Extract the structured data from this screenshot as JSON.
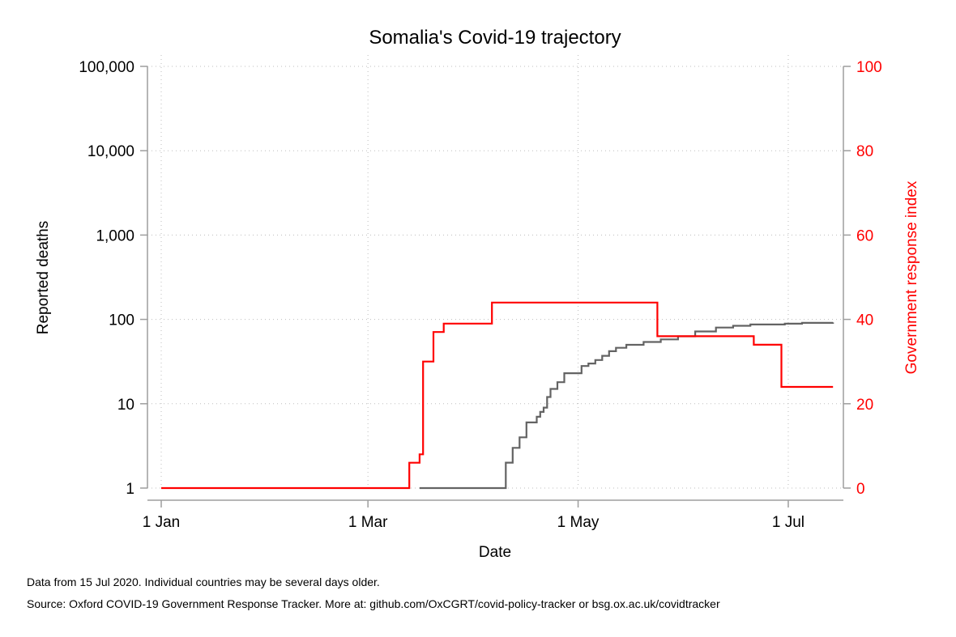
{
  "chart_data": {
    "type": "line",
    "title": "Somalia's Covid-19 trajectory",
    "xlabel": "Date",
    "ylabel": "Reported deaths",
    "y2label": "Government response index",
    "x_ticks": [
      {
        "label": "1 Jan",
        "day": 0
      },
      {
        "label": "1 Mar",
        "day": 60
      },
      {
        "label": "1 May",
        "day": 121
      },
      {
        "label": "1 Jul",
        "day": 182
      }
    ],
    "x_range_days": [
      -4,
      198
    ],
    "y_scale": "log",
    "ylim": [
      1,
      100000
    ],
    "y_ticks": [
      "1",
      "10",
      "100",
      "1,000",
      "10,000",
      "100,000"
    ],
    "y2lim": [
      0,
      100
    ],
    "y2_ticks": [
      "0",
      "20",
      "40",
      "60",
      "80",
      "100"
    ],
    "grid": true,
    "colors": {
      "deaths": "#636363",
      "response": "#ff0000",
      "axis": "#9e9e9e",
      "grid": "#bdbdbd"
    },
    "series": [
      {
        "name": "Reported deaths",
        "axis": "left",
        "x": [
          "2020-03-16",
          "2020-04-08",
          "2020-04-10",
          "2020-04-12",
          "2020-04-14",
          "2020-04-16",
          "2020-04-18",
          "2020-04-19",
          "2020-04-20",
          "2020-04-21",
          "2020-04-22",
          "2020-04-23",
          "2020-04-25",
          "2020-04-27",
          "2020-05-02",
          "2020-05-04",
          "2020-05-06",
          "2020-05-08",
          "2020-05-10",
          "2020-05-12",
          "2020-05-15",
          "2020-05-20",
          "2020-05-25",
          "2020-05-30",
          "2020-06-04",
          "2020-06-10",
          "2020-06-15",
          "2020-06-20",
          "2020-06-30",
          "2020-07-05",
          "2020-07-14"
        ],
        "y": [
          1,
          1,
          2,
          3,
          4,
          6,
          6,
          7,
          8,
          9,
          12,
          15,
          18,
          23,
          28,
          30,
          33,
          37,
          42,
          46,
          50,
          54,
          58,
          63,
          72,
          80,
          84,
          87,
          89,
          91,
          92
        ]
      },
      {
        "name": "Government response index",
        "axis": "right",
        "x": [
          "2020-01-01",
          "2020-03-12",
          "2020-03-13",
          "2020-03-15",
          "2020-03-16",
          "2020-03-17",
          "2020-03-18",
          "2020-03-20",
          "2020-03-23",
          "2020-04-06",
          "2020-05-23",
          "2020-05-24",
          "2020-06-20",
          "2020-06-21",
          "2020-06-28",
          "2020-06-29",
          "2020-07-14"
        ],
        "y": [
          0,
          0,
          6,
          6,
          8,
          30,
          30,
          37,
          39,
          44,
          44,
          36,
          36,
          34,
          34,
          24,
          24
        ]
      }
    ]
  },
  "notes": {
    "line1": "Data from 15 Jul 2020. Individual countries may be several days older.",
    "line2": "Source: Oxford COVID-19 Government Response Tracker. More at: github.com/OxCGRT/covid-policy-tracker or bsg.ox.ac.uk/covidtracker"
  }
}
